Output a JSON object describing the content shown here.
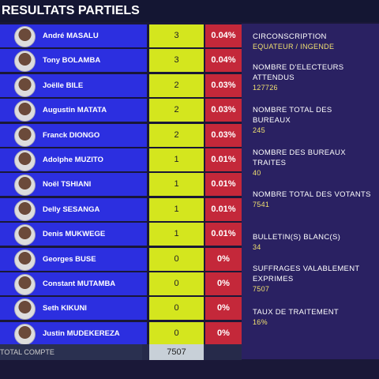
{
  "header": {
    "title": "RESULTATS PARTIELS"
  },
  "table": {
    "rows": [
      [
        "André MASALU",
        3,
        "0.04%"
      ],
      [
        "Tony BOLAMBA",
        3,
        "0.04%"
      ],
      [
        "Joëlle BILE",
        2,
        "0.03%"
      ],
      [
        "Augustin MATATA",
        2,
        "0.03%"
      ],
      [
        "Franck DIONGO",
        2,
        "0.03%"
      ],
      [
        "Adolphe MUZITO",
        1,
        "0.01%"
      ],
      [
        "Noël TSHIANI",
        1,
        "0.01%"
      ],
      [
        "Delly SESANGA",
        1,
        "0.01%"
      ],
      [
        "Denis MUKWEGE",
        1,
        "0.01%"
      ],
      [
        "Georges BUSE",
        0,
        "0%"
      ],
      [
        "Constant MUTAMBA",
        0,
        "0%"
      ],
      [
        "Seth KIKUNI",
        0,
        "0%"
      ],
      [
        "Justin MUDEKEREZA",
        0,
        "0%"
      ]
    ],
    "total_label": "TOTAL COMPTE",
    "total": 7507
  },
  "info": [
    {
      "label": "CIRCONSCRIPTION",
      "value": "EQUATEUR / INGENDE"
    },
    {
      "label": "NOMBRE D'ELECTEURS ATTENDUS",
      "value": "127726"
    },
    {
      "label": "NOMBRE TOTAL DES BUREAUX",
      "value": "245"
    },
    {
      "label": "NOMBRE DES BUREAUX TRAITES",
      "value": "40"
    },
    {
      "label": "NOMBRE TOTAL DES VOTANTS",
      "value": "7541"
    },
    {
      "label": "BULLETIN(S) BLANC(S)",
      "value": "34"
    },
    {
      "label": "SUFFRAGES VALABLEMENT EXPRIMES",
      "value": "7507"
    },
    {
      "label": "TAUX DE TRAITEMENT",
      "value": "16%"
    }
  ]
}
